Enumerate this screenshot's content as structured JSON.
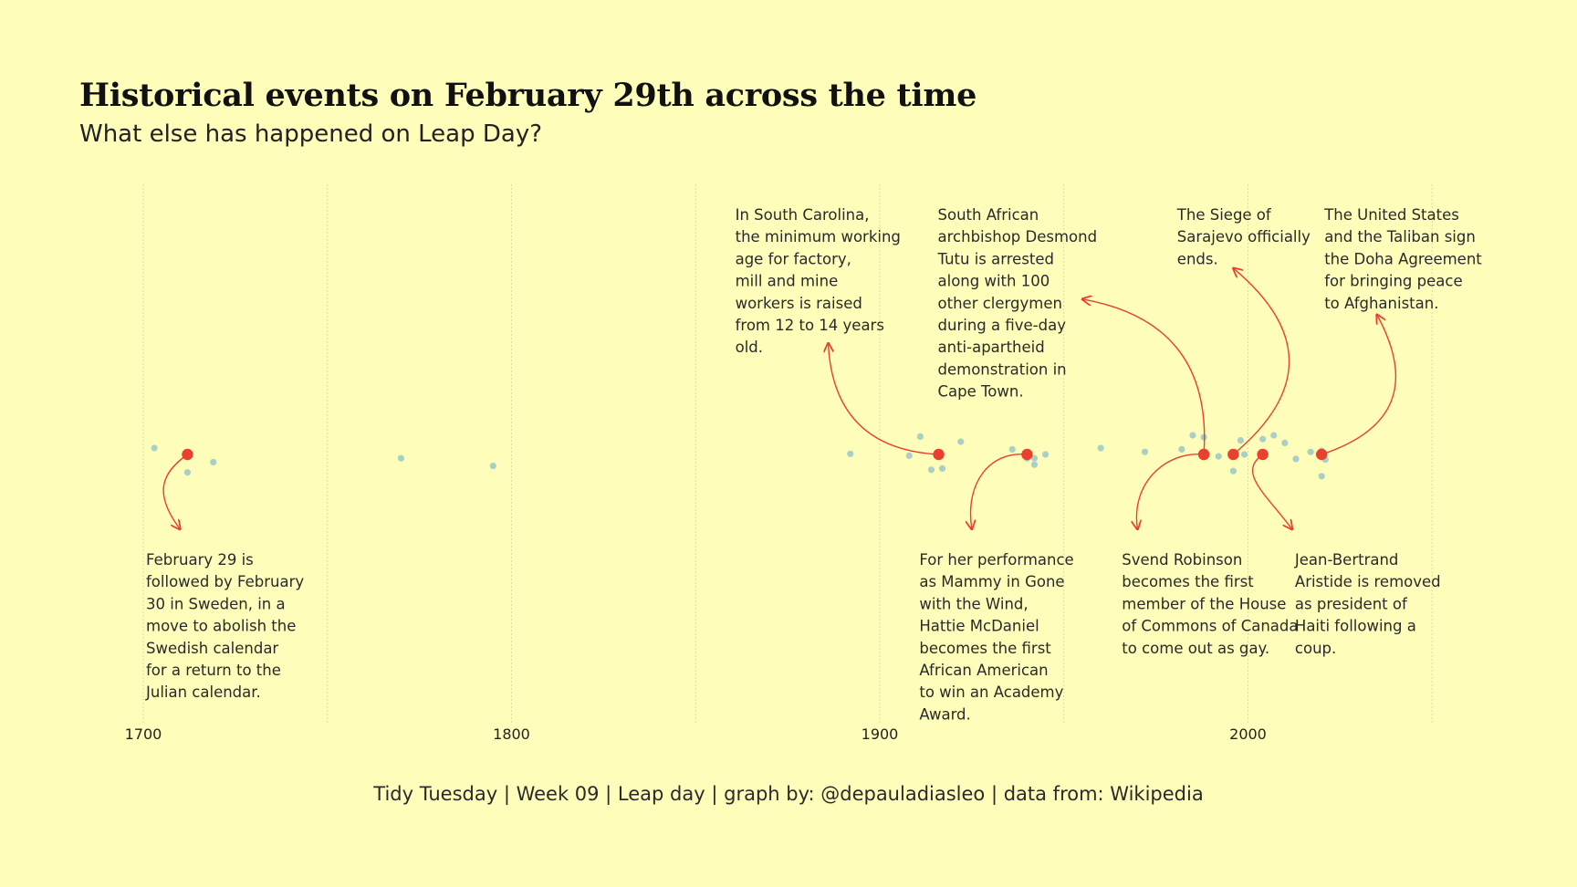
{
  "title": "Historical events on February 29th across the time",
  "subtitle": "What else has happened on Leap Day?",
  "caption": "Tidy Tuesday | Week 09 | Leap day | graph by: @depauladiasleo | data from: Wikipedia",
  "colors": {
    "background": "#FFFDBA",
    "highlight": "#E8412F",
    "point": "#A9CFC6",
    "grid": "#DEDCA8"
  },
  "chart_data": {
    "type": "scatter",
    "x_axis": {
      "min": 1700,
      "max": 2050,
      "ticks": [
        1700,
        1800,
        1900,
        2000
      ],
      "gridlines": [
        1700,
        1750,
        1800,
        1850,
        1900,
        1950,
        2000,
        2050
      ]
    },
    "background_points": [
      {
        "year": 1703,
        "j": 0.5
      },
      {
        "year": 1712,
        "j": -1.4
      },
      {
        "year": 1719,
        "j": -0.6
      },
      {
        "year": 1770,
        "j": -0.3
      },
      {
        "year": 1795,
        "j": -0.9
      },
      {
        "year": 1892,
        "j": 0.05
      },
      {
        "year": 1908,
        "j": -0.1
      },
      {
        "year": 1911,
        "j": 1.4
      },
      {
        "year": 1914,
        "j": -1.2
      },
      {
        "year": 1917,
        "j": -1.1
      },
      {
        "year": 1922,
        "j": 1.0
      },
      {
        "year": 1936,
        "j": 0.4
      },
      {
        "year": 1940,
        "j": -0.3
      },
      {
        "year": 1942,
        "j": -0.3
      },
      {
        "year": 1942,
        "j": -0.8
      },
      {
        "year": 1945,
        "j": 0.0
      },
      {
        "year": 1960,
        "j": 0.5
      },
      {
        "year": 1972,
        "j": 0.2
      },
      {
        "year": 1982,
        "j": 0.4
      },
      {
        "year": 1985,
        "j": 1.5
      },
      {
        "year": 1988,
        "j": 1.35
      },
      {
        "year": 1992,
        "j": -0.15
      },
      {
        "year": 1996,
        "j": -1.3
      },
      {
        "year": 1998,
        "j": 1.1
      },
      {
        "year": 1999,
        "j": 0.0
      },
      {
        "year": 2004,
        "j": 1.2
      },
      {
        "year": 2007,
        "j": 1.5
      },
      {
        "year": 2010,
        "j": 0.9
      },
      {
        "year": 2013,
        "j": -0.35
      },
      {
        "year": 2017,
        "j": 0.2
      },
      {
        "year": 2020,
        "j": 0.3
      },
      {
        "year": 2020,
        "j": -1.7
      },
      {
        "year": 2021,
        "j": -0.4
      }
    ],
    "highlighted_events": [
      {
        "year": 1712,
        "text": [
          "February 29 is",
          "followed by February",
          "30 in Sweden, in a",
          "move to abolish the",
          "Swedish calendar",
          "for a return to the",
          "Julian calendar."
        ],
        "side": "below",
        "label_year": 1700,
        "arrow": {
          "dir": -1,
          "to_year": 1710
        }
      },
      {
        "year": 1916,
        "text": [
          "In South Carolina,",
          "the minimum working",
          "age for factory,",
          "mill and mine",
          "workers is raised",
          "from 12 to 14 years",
          "old."
        ],
        "side": "above",
        "label_year": 1860,
        "arrow": {
          "to_year": 1886,
          "to_line": 6,
          "curv": -0.45
        }
      },
      {
        "year": 1940,
        "text": [
          "For her performance",
          "as Mammy in Gone",
          "with the Wind,",
          "Hattie McDaniel",
          "becomes the first",
          "African American",
          "to win an Academy",
          "Award."
        ],
        "side": "below",
        "label_year": 1910,
        "arrow": {
          "dir": 1,
          "to_year": 1925
        }
      },
      {
        "year": 1988,
        "text": [
          "South African",
          "archbishop Desmond",
          "Tutu is arrested",
          "along with 100",
          "other clergymen",
          "during a five-day",
          "anti-apartheid",
          "demonstration in",
          "Cape Town."
        ],
        "side": "above",
        "label_year": 1915,
        "arrow": {
          "to_year": 1955,
          "to_line": 4,
          "curv": 0.45
        }
      },
      {
        "year": 1988,
        "text": [
          "Svend Robinson",
          "becomes the first",
          "member of the House",
          "of Commons of Canada",
          "to come out as gay."
        ],
        "side": "below",
        "label_year": 1965,
        "arrow": {
          "dir": 1,
          "to_year": 1970
        }
      },
      {
        "year": 1996,
        "text": [
          "The Siege of",
          "Sarajevo officially",
          "ends."
        ],
        "side": "above",
        "label_year": 1980,
        "arrow": {
          "to_year": 1996,
          "to_line": 2.6,
          "curv": 0.6
        }
      },
      {
        "year": 2004,
        "text": [
          "Jean-Bertrand",
          "Aristide is removed",
          "as president of",
          "Haiti following a",
          "coup."
        ],
        "side": "below",
        "label_year": 2012,
        "arrow": {
          "dir": -1,
          "to_year": 2012
        }
      },
      {
        "year": 2020,
        "text": [
          "The United States",
          "and the Taliban sign",
          "the Doha Agreement",
          "for bringing peace",
          "to Afghanistan."
        ],
        "side": "above",
        "label_year": 2020,
        "arrow": {
          "to_year": 2035,
          "to_line": 4.7,
          "curv": 0.6
        }
      }
    ]
  }
}
